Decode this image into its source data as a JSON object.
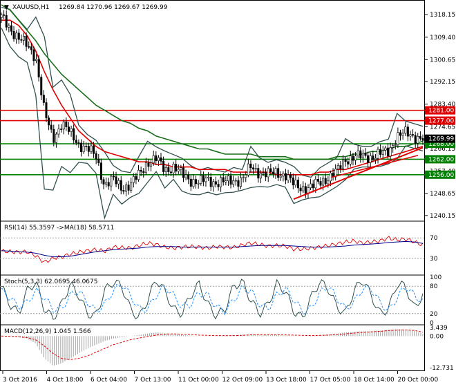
{
  "header": {
    "symbol": "XAUUSD,H1",
    "ohlc": "1269.84 1270.96 1269.67 1269.99"
  },
  "colors": {
    "up_candle": "#000000",
    "bg": "#ffffff",
    "ma_fast": "#1a6e1a",
    "ma_slow": "#e00000",
    "bands": "#2f4f4f",
    "levels_red": "#e00000",
    "levels_green": "#008000",
    "rsi": "#e00000",
    "rsi_ma": "#00008b",
    "stoch_main": "#2f4f4f",
    "stoch_signal": "#1e90ff",
    "macd_hist": "#a0a0a0",
    "macd_signal": "#e00000"
  },
  "chart_data": [
    {
      "type": "candlestick",
      "panel": "price",
      "ylim": [
        1238.5,
        1322.5
      ],
      "y_ticks": [
        1318.15,
        1309.4,
        1300.65,
        1292.15,
        1283.4,
        1274.65,
        1266.15,
        1257.4,
        1248.65,
        1240.15
      ],
      "current_price": 1269.99,
      "horizontal_levels": [
        {
          "value": 1281.0,
          "label": "1281.00",
          "color": "red"
        },
        {
          "value": 1277.0,
          "label": "1277.00",
          "color": "red"
        },
        {
          "value": 1268.0,
          "label": "1268.00",
          "color": "green"
        },
        {
          "value": 1262.0,
          "label": "1262.00",
          "color": "green"
        },
        {
          "value": 1256.0,
          "label": "1256.00",
          "color": "green"
        }
      ],
      "x_ticks": [
        "3 Oct 2016",
        "4 Oct 18:00",
        "6 Oct 04:00",
        "7 Oct 13:00",
        "11 Oct 00:00",
        "12 Oct 09:00",
        "13 Oct 18:00",
        "17 Oct 05:00",
        "18 Oct 14:00",
        "20 Oct 00:00"
      ],
      "close_path": [
        1317,
        1313,
        1309,
        1306,
        1302,
        1280,
        1270,
        1276,
        1272,
        1268,
        1266,
        1263,
        1252,
        1254,
        1251,
        1252,
        1256,
        1261,
        1262,
        1258,
        1259,
        1256,
        1254,
        1253,
        1254,
        1253,
        1253,
        1254,
        1254,
        1259,
        1257,
        1256,
        1257,
        1256,
        1252,
        1251,
        1251,
        1253,
        1255,
        1257,
        1262,
        1263,
        1263,
        1263,
        1264,
        1265,
        1271,
        1272,
        1271,
        1270
      ],
      "ma_fast_path": [
        1322,
        1320,
        1316,
        1312,
        1308,
        1303,
        1299,
        1295,
        1292,
        1289,
        1286,
        1283,
        1281,
        1279,
        1277,
        1276,
        1274,
        1273,
        1271,
        1270,
        1269,
        1268,
        1267,
        1266,
        1266,
        1265,
        1264,
        1264,
        1264,
        1264,
        1263,
        1263,
        1263,
        1263,
        1262,
        1262,
        1262,
        1262,
        1262,
        1263,
        1263,
        1264,
        1264,
        1265,
        1265,
        1266,
        1267,
        1267,
        1268,
        1269
      ],
      "ma_slow_path": [
        1316,
        1316,
        1314,
        1310,
        1304,
        1296,
        1289,
        1283,
        1278,
        1273,
        1270,
        1267,
        1265,
        1264,
        1263,
        1262,
        1261,
        1261,
        1260,
        1260,
        1259,
        1259,
        1259,
        1258,
        1258,
        1258,
        1258,
        1257,
        1257,
        1257,
        1257,
        1257,
        1256,
        1256,
        1256,
        1256,
        1256,
        1257,
        1257,
        1258,
        1258,
        1259,
        1260,
        1261,
        1262,
        1263,
        1264,
        1265,
        1266,
        1267
      ]
    },
    {
      "type": "line",
      "panel": "rsi",
      "title": "RSI(14) 55.3597 ->MA(18) 58.5711",
      "ylim": [
        0,
        100
      ],
      "levels": [
        70,
        30
      ],
      "level_labels": [
        "70",
        "30"
      ],
      "rsi_path": [
        44,
        43,
        42,
        43,
        35,
        22,
        30,
        33,
        38,
        42,
        45,
        47,
        44,
        52,
        51,
        50,
        55,
        60,
        57,
        52,
        50,
        52,
        53,
        52,
        50,
        53,
        52,
        51,
        56,
        60,
        57,
        54,
        55,
        54,
        48,
        48,
        50,
        52,
        55,
        58,
        62,
        64,
        60,
        62,
        64,
        70,
        66,
        68,
        62,
        56
      ],
      "ma_path": [
        45,
        44,
        43,
        42,
        40,
        36,
        33,
        33,
        34,
        37,
        40,
        43,
        45,
        47,
        48,
        49,
        50,
        52,
        53,
        53,
        53,
        52,
        52,
        52,
        52,
        52,
        52,
        52,
        53,
        54,
        55,
        55,
        55,
        55,
        54,
        53,
        52,
        52,
        52,
        53,
        54,
        56,
        57,
        58,
        59,
        61,
        62,
        63,
        62,
        59
      ]
    },
    {
      "type": "line",
      "panel": "stoch",
      "title": "Stoch(5,3,3) 62.0695 46.0675",
      "ylim": [
        0,
        100
      ],
      "levels": [
        80,
        20
      ],
      "level_labels": [
        "100",
        "80",
        "20",
        "0"
      ],
      "main_path": [
        80,
        40,
        20,
        70,
        90,
        30,
        10,
        40,
        85,
        60,
        20,
        15,
        70,
        90,
        80,
        30,
        10,
        50,
        95,
        70,
        30,
        20,
        60,
        85,
        40,
        15,
        30,
        80,
        90,
        50,
        20,
        40,
        85,
        70,
        25,
        10,
        55,
        90,
        75,
        35,
        20,
        70,
        95,
        60,
        20,
        30,
        85,
        80,
        30,
        62
      ],
      "signal_path": [
        70,
        55,
        35,
        45,
        70,
        55,
        30,
        30,
        60,
        70,
        45,
        25,
        40,
        70,
        85,
        60,
        30,
        30,
        60,
        80,
        60,
        35,
        40,
        65,
        60,
        35,
        25,
        50,
        75,
        70,
        40,
        30,
        60,
        75,
        50,
        25,
        30,
        65,
        80,
        55,
        30,
        45,
        75,
        75,
        45,
        25,
        55,
        80,
        60,
        46
      ]
    },
    {
      "type": "bar",
      "panel": "macd",
      "title": "MACD(12,26,9) 1.045 1.566",
      "y_labels": [
        "3.439",
        "0.00",
        "-12.731"
      ],
      "ylim": [
        -12.731,
        3.439
      ],
      "hist_path": [
        0,
        -0.2,
        -0.5,
        -1,
        -3,
        -9,
        -12,
        -11,
        -9,
        -7,
        -5,
        -3.5,
        -2,
        -1,
        -0.5,
        0,
        0.5,
        1,
        1.5,
        1.2,
        0.8,
        0.5,
        0.2,
        0,
        0.1,
        0,
        0.2,
        0.3,
        0.6,
        0.8,
        0.6,
        0.5,
        0.5,
        0.4,
        0.2,
        0,
        0.1,
        0.4,
        0.7,
        1,
        1.5,
        1.8,
        2,
        2.1,
        2.2,
        2.6,
        2.8,
        2.6,
        2.2,
        1.0
      ],
      "signal_path": [
        0,
        -0.1,
        -0.3,
        -0.6,
        -1.5,
        -4,
        -7,
        -9,
        -9.5,
        -9,
        -8,
        -6.5,
        -5,
        -3.5,
        -2.5,
        -1.5,
        -0.8,
        -0.2,
        0.4,
        0.8,
        0.9,
        0.8,
        0.6,
        0.4,
        0.3,
        0.2,
        0.2,
        0.2,
        0.3,
        0.5,
        0.6,
        0.6,
        0.6,
        0.5,
        0.4,
        0.3,
        0.2,
        0.3,
        0.4,
        0.6,
        0.9,
        1.2,
        1.5,
        1.7,
        1.9,
        2.2,
        2.4,
        2.5,
        2.3,
        1.6
      ]
    }
  ]
}
